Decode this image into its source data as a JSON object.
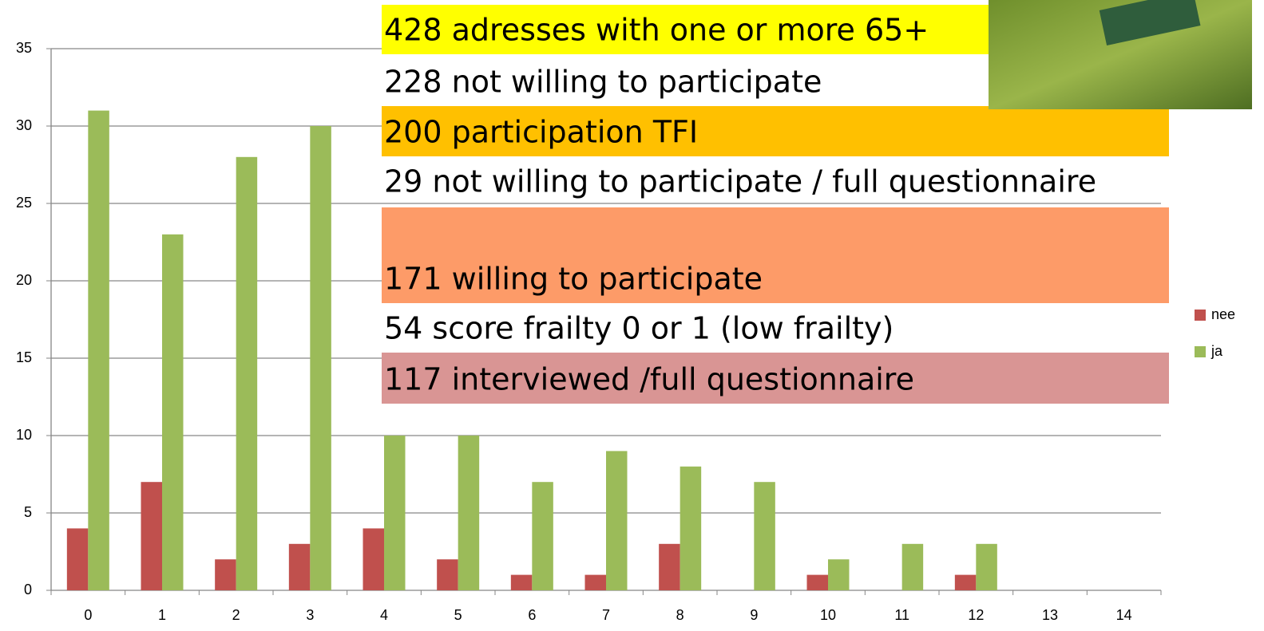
{
  "chart_data": {
    "type": "bar",
    "categories": [
      "0",
      "1",
      "2",
      "3",
      "4",
      "5",
      "6",
      "7",
      "8",
      "9",
      "10",
      "11",
      "12",
      "13",
      "14"
    ],
    "series": [
      {
        "name": "nee",
        "color": "#c0504d",
        "values": [
          4,
          7,
          2,
          3,
          4,
          2,
          1,
          1,
          3,
          0,
          1,
          0,
          1,
          0,
          0
        ]
      },
      {
        "name": "ja",
        "color": "#9bbb59",
        "values": [
          31,
          23,
          28,
          30,
          10,
          10,
          7,
          9,
          8,
          7,
          2,
          3,
          3,
          0,
          0
        ]
      }
    ],
    "ylim": [
      0,
      35
    ],
    "yticks": [
      0,
      5,
      10,
      15,
      20,
      25,
      30,
      35
    ],
    "grid": true,
    "legend": "right",
    "annotations": [
      {
        "text": "428 adresses with one or more 65+",
        "color": "#ffff00"
      },
      {
        "text": "228 not willing to participate",
        "color": null
      },
      {
        "text": "200 participation TFI",
        "color": "#ffc000"
      },
      {
        "text": "29 not willing to participate / full questionnaire",
        "color": null
      },
      {
        "text": "171 willing to participate",
        "color": "#fd9b68"
      },
      {
        "text": "54 score frailty 0 or 1 (low frailty)",
        "color": null
      },
      {
        "text": "117 interviewed /full questionnaire",
        "color": "#d99594"
      }
    ]
  }
}
